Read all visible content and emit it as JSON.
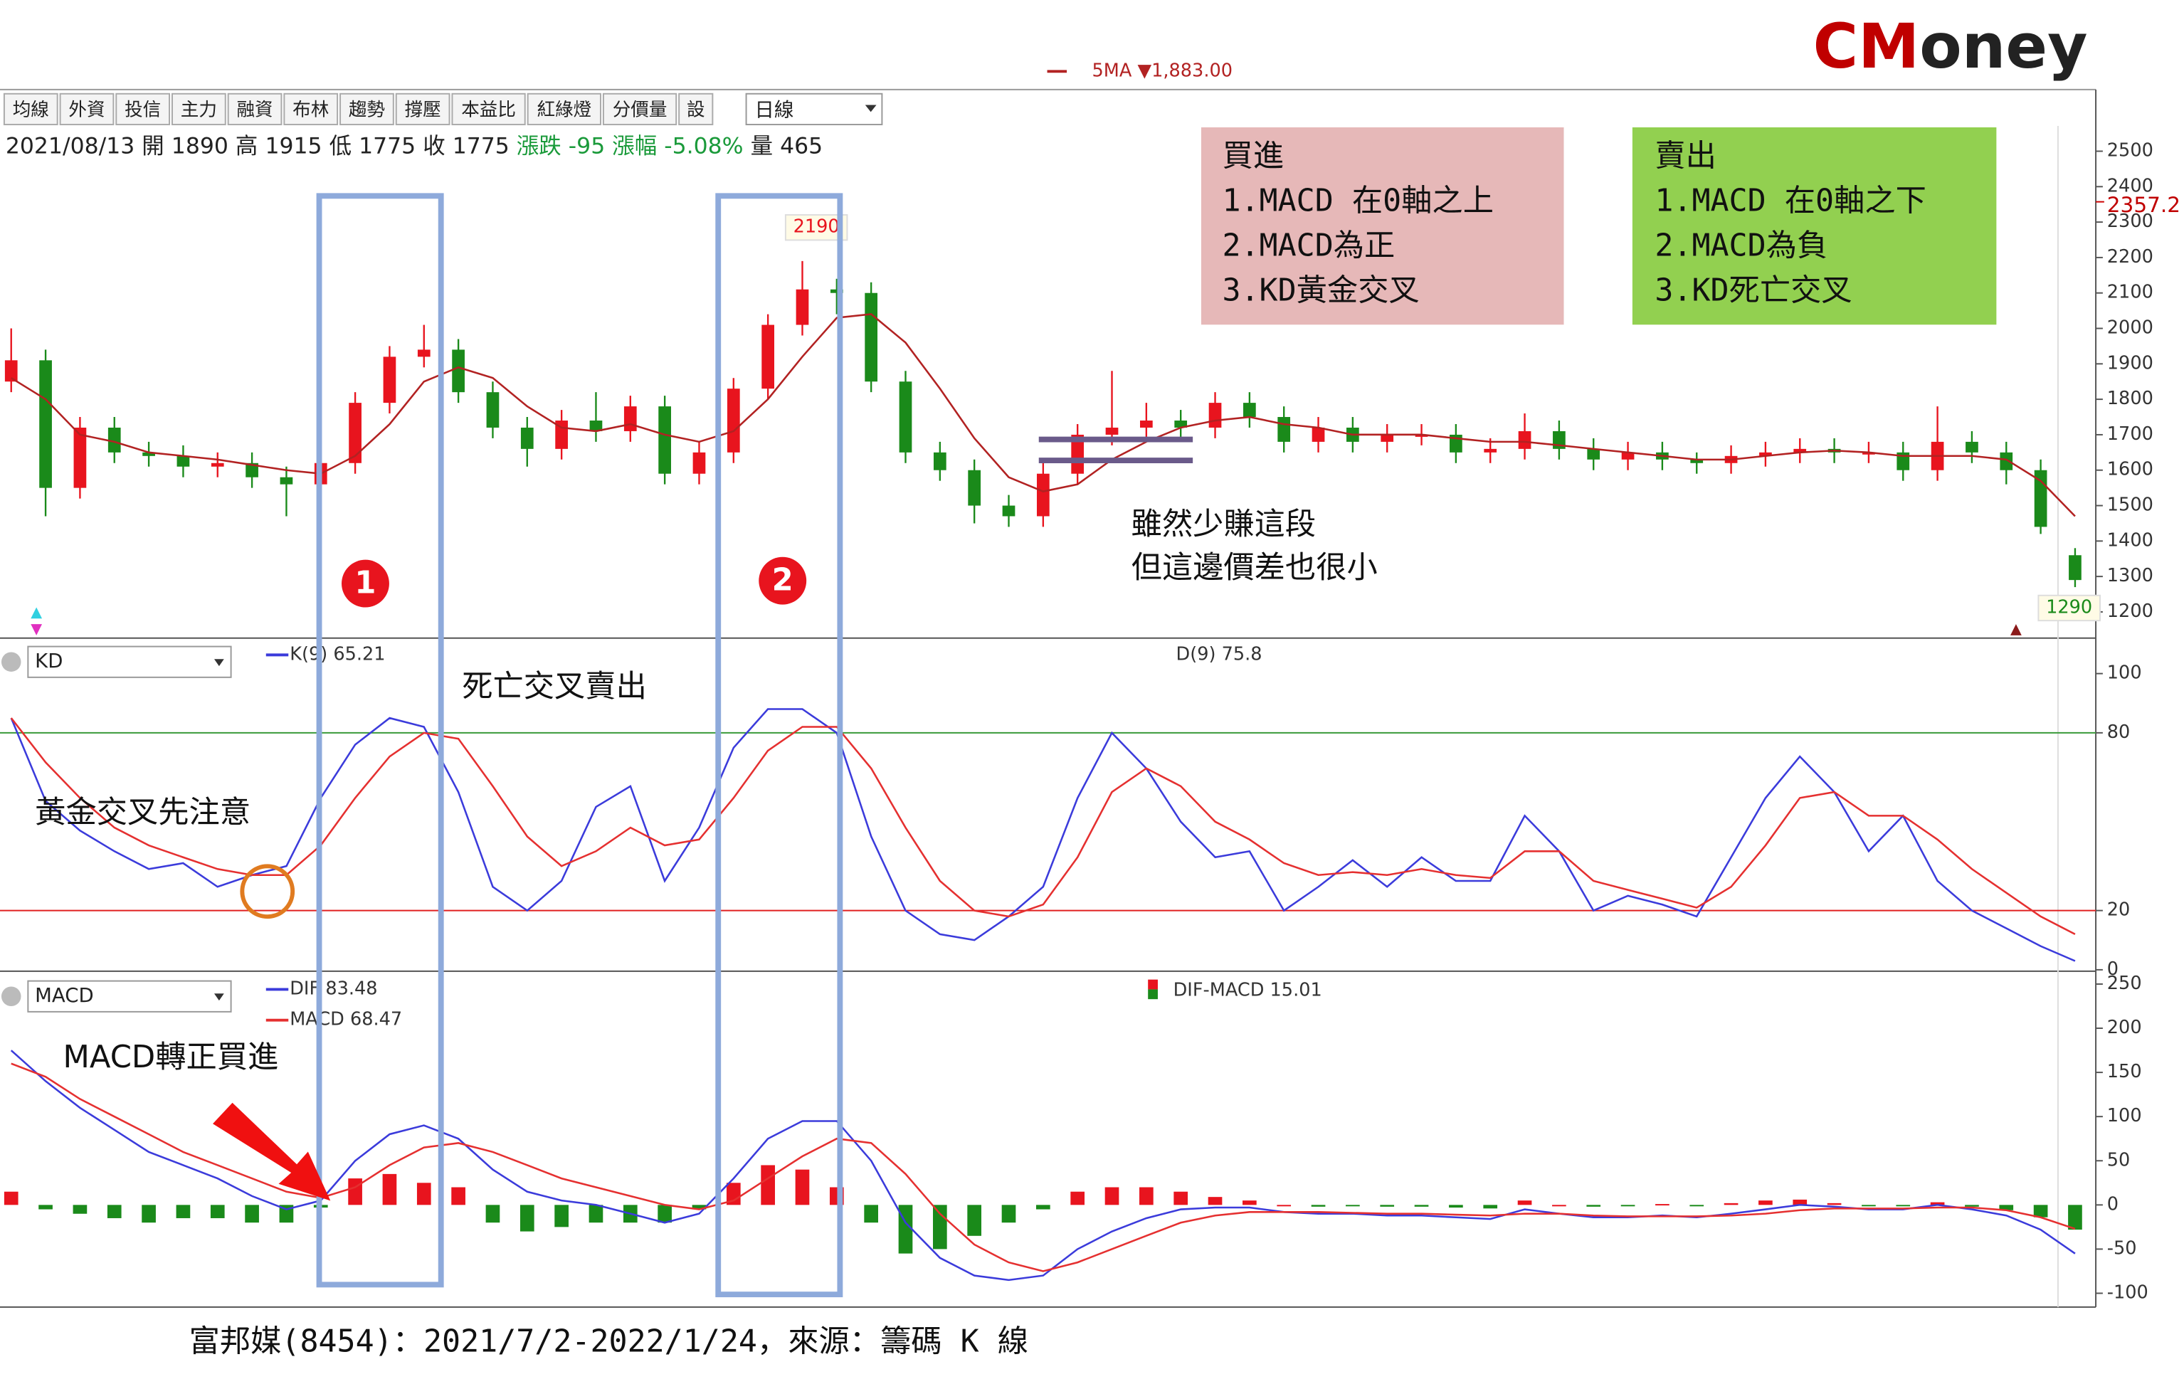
{
  "toolbar": [
    "均線",
    "外資",
    "投信",
    "主力",
    "融資",
    "布林",
    "趨勢",
    "撐壓",
    "本益比",
    "紅綠燈",
    "分價量",
    "設"
  ],
  "period": "日線",
  "info": {
    "date": "2021/08/13",
    "open_label": "開",
    "open": 1890,
    "high_label": "高",
    "high": 1915,
    "low_label": "低",
    "low": 1775,
    "close_label": "收",
    "close": 1775,
    "change_label": "漲跌",
    "change": -95,
    "pct_label": "漲幅",
    "pct": "-5.08%",
    "volume_label": "量",
    "volume": 465
  },
  "logo": [
    "CM",
    "oney"
  ],
  "buy_box": {
    "title": "買進",
    "lines": [
      "1.MACD 在0軸之上",
      "2.MACD為正",
      "3.KD黃金交叉"
    ]
  },
  "sell_box": {
    "title": "賣出",
    "lines": [
      "1.MACD 在0軸之下",
      "2.MACD為負",
      "3.KD死亡交叉"
    ]
  },
  "annotations": {
    "death_cross": "死亡交叉賣出",
    "golden_cross": "黃金交叉先注意",
    "macd_positive": "MACD轉正買進",
    "note_line1": "雖然少賺這段",
    "note_line2": "但這邊價差也很小",
    "marker1": "1",
    "marker2": "2"
  },
  "caption": "富邦媒(8454)：2021/7/2-2022/1/24，來源：籌碼 K 線",
  "chart_data": [
    {
      "type": "candlestick",
      "ma": {
        "name": "5MA",
        "label": "▼1,883.00",
        "color": "#b22222",
        "values": [
          1860,
          1800,
          1700,
          1680,
          1650,
          1640,
          1630,
          1615,
          1600,
          1590,
          1640,
          1730,
          1850,
          1890,
          1860,
          1780,
          1720,
          1710,
          1730,
          1700,
          1680,
          1710,
          1800,
          1920,
          2030,
          2040,
          1960,
          1830,
          1690,
          1580,
          1540,
          1560,
          1630,
          1680,
          1720,
          1740,
          1750,
          1730,
          1720,
          1700,
          1700,
          1700,
          1690,
          1680,
          1680,
          1670,
          1660,
          1650,
          1640,
          1630,
          1630,
          1640,
          1650,
          1655,
          1650,
          1640,
          1640,
          1640,
          1630,
          1570,
          1470
        ]
      },
      "open": [
        1850,
        1910,
        1550,
        1720,
        1650,
        1640,
        1610,
        1620,
        1580,
        1560,
        1620,
        1790,
        1920,
        1940,
        1820,
        1720,
        1660,
        1740,
        1710,
        1780,
        1590,
        1650,
        1830,
        2010,
        2110,
        2100,
        1850,
        1650,
        1600,
        1500,
        1470,
        1590,
        1700,
        1720,
        1740,
        1720,
        1790,
        1750,
        1680,
        1720,
        1680,
        1700,
        1700,
        1650,
        1660,
        1710,
        1660,
        1630,
        1650,
        1630,
        1620,
        1640,
        1650,
        1660,
        1650,
        1650,
        1600,
        1680,
        1650,
        1600,
        1360
      ],
      "high": [
        2000,
        1940,
        1750,
        1750,
        1680,
        1670,
        1650,
        1650,
        1610,
        1650,
        1820,
        1950,
        2010,
        1970,
        1850,
        1750,
        1770,
        1820,
        1810,
        1810,
        1680,
        1860,
        2040,
        2190,
        2140,
        2130,
        1880,
        1680,
        1630,
        1530,
        1620,
        1730,
        1880,
        1790,
        1770,
        1820,
        1820,
        1780,
        1750,
        1750,
        1730,
        1730,
        1730,
        1690,
        1760,
        1740,
        1690,
        1680,
        1680,
        1650,
        1670,
        1680,
        1690,
        1690,
        1680,
        1680,
        1780,
        1710,
        1680,
        1630,
        1380
      ],
      "low": [
        1820,
        1470,
        1520,
        1620,
        1610,
        1580,
        1580,
        1550,
        1470,
        1530,
        1590,
        1760,
        1890,
        1790,
        1690,
        1610,
        1630,
        1680,
        1680,
        1560,
        1560,
        1620,
        1800,
        1980,
        2040,
        1820,
        1620,
        1570,
        1450,
        1440,
        1440,
        1560,
        1670,
        1690,
        1690,
        1690,
        1720,
        1650,
        1650,
        1650,
        1650,
        1670,
        1620,
        1620,
        1630,
        1630,
        1600,
        1600,
        1600,
        1590,
        1590,
        1610,
        1620,
        1620,
        1620,
        1570,
        1570,
        1620,
        1560,
        1420,
        1270
      ],
      "close": [
        1910,
        1550,
        1720,
        1650,
        1640,
        1610,
        1620,
        1580,
        1560,
        1620,
        1790,
        1920,
        1940,
        1820,
        1720,
        1660,
        1740,
        1710,
        1780,
        1590,
        1650,
        1830,
        2010,
        2110,
        2100,
        1850,
        1650,
        1600,
        1500,
        1470,
        1590,
        1700,
        1720,
        1740,
        1720,
        1790,
        1750,
        1680,
        1720,
        1680,
        1700,
        1700,
        1650,
        1660,
        1710,
        1660,
        1630,
        1650,
        1630,
        1620,
        1640,
        1650,
        1660,
        1650,
        1650,
        1600,
        1680,
        1650,
        1600,
        1440,
        1290
      ],
      "up_color": "#e8141e",
      "down_color": "#1a8a1a",
      "ylim": [
        1130,
        2670
      ],
      "yticks": [
        1200,
        1300,
        1400,
        1500,
        1600,
        1700,
        1800,
        1900,
        2000,
        2100,
        2200,
        2300,
        2400,
        2500
      ],
      "price_label": 2357.2,
      "max_label": 2190,
      "last_label": 1290
    },
    {
      "type": "line",
      "selector": "KD",
      "series": [
        {
          "name": "K(9)",
          "last": 65.21,
          "color": "#3b3bdb",
          "values": [
            85,
            57,
            47,
            40,
            34,
            36,
            28,
            32,
            35,
            58,
            76,
            85,
            82,
            60,
            28,
            20,
            30,
            55,
            62,
            30,
            48,
            75,
            88,
            88,
            80,
            45,
            20,
            12,
            10,
            18,
            28,
            58,
            80,
            68,
            50,
            38,
            40,
            20,
            28,
            37,
            28,
            38,
            30,
            30,
            52,
            40,
            20,
            25,
            22,
            18,
            38,
            58,
            72,
            60,
            40,
            52,
            30,
            20,
            14,
            8,
            3
          ]
        },
        {
          "name": "D(9)",
          "last": 75.8,
          "color": "#e53030",
          "values": [
            85,
            70,
            58,
            48,
            42,
            38,
            34,
            32,
            32,
            42,
            58,
            72,
            80,
            78,
            62,
            45,
            35,
            40,
            48,
            42,
            44,
            58,
            74,
            82,
            82,
            68,
            48,
            30,
            20,
            18,
            22,
            38,
            60,
            68,
            62,
            50,
            44,
            36,
            32,
            33,
            32,
            34,
            32,
            31,
            40,
            40,
            30,
            27,
            24,
            21,
            28,
            42,
            58,
            60,
            52,
            52,
            44,
            34,
            26,
            18,
            12
          ]
        }
      ],
      "hlines": [
        {
          "value": 80,
          "color": "#3a9a3a"
        },
        {
          "value": 20,
          "color": "#e02020"
        }
      ],
      "ylim": [
        0,
        111.5
      ],
      "yticks": [
        0,
        20,
        80,
        100
      ]
    },
    {
      "type": "macd",
      "selector": "MACD",
      "series": [
        {
          "name": "DIF",
          "last": 83.48,
          "color": "#3b3bdb",
          "values": [
            175,
            140,
            110,
            85,
            60,
            45,
            30,
            10,
            -5,
            5,
            50,
            80,
            90,
            75,
            40,
            15,
            5,
            0,
            -10,
            -20,
            -10,
            30,
            75,
            95,
            95,
            50,
            -20,
            -60,
            -80,
            -85,
            -80,
            -50,
            -30,
            -15,
            -5,
            -3,
            -3,
            -8,
            -10,
            -10,
            -12,
            -12,
            -14,
            -16,
            -5,
            -10,
            -14,
            -14,
            -12,
            -14,
            -10,
            -5,
            0,
            -2,
            -5,
            -5,
            0,
            -5,
            -12,
            -28,
            -55
          ]
        },
        {
          "name": "MACD",
          "last": 68.47,
          "color": "#e53030",
          "values": [
            160,
            145,
            120,
            100,
            80,
            60,
            45,
            30,
            15,
            8,
            20,
            45,
            65,
            70,
            60,
            45,
            30,
            20,
            10,
            0,
            -5,
            5,
            30,
            55,
            75,
            70,
            35,
            -10,
            -45,
            -65,
            -75,
            -65,
            -50,
            -35,
            -20,
            -12,
            -8,
            -8,
            -8,
            -9,
            -10,
            -10,
            -11,
            -12,
            -10,
            -10,
            -12,
            -13,
            -13,
            -13,
            -12,
            -10,
            -6,
            -4,
            -4,
            -4,
            -3,
            -3,
            -6,
            -14,
            -27
          ]
        }
      ],
      "bars": {
        "name": "DIF-MACD",
        "last": 15.01,
        "up_color": "#e8141e",
        "down_color": "#1a8a1a",
        "values": [
          15,
          -5,
          -10,
          -15,
          -20,
          -15,
          -15,
          -20,
          -20,
          -3,
          30,
          35,
          25,
          20,
          -20,
          -30,
          -25,
          -20,
          -20,
          -20,
          -5,
          25,
          45,
          40,
          20,
          -20,
          -55,
          -50,
          -35,
          -20,
          -5,
          15,
          20,
          20,
          15,
          9,
          5,
          0,
          -2,
          -1,
          -2,
          -2,
          -3,
          -4,
          5,
          0,
          -2,
          -1,
          1,
          -1,
          2,
          5,
          6,
          2,
          -1,
          -1,
          3,
          -2,
          -6,
          -14,
          -28
        ]
      },
      "ylim": [
        -114,
        263
      ],
      "yticks": [
        -100,
        -50,
        0,
        50,
        100,
        150,
        200,
        250
      ]
    }
  ]
}
